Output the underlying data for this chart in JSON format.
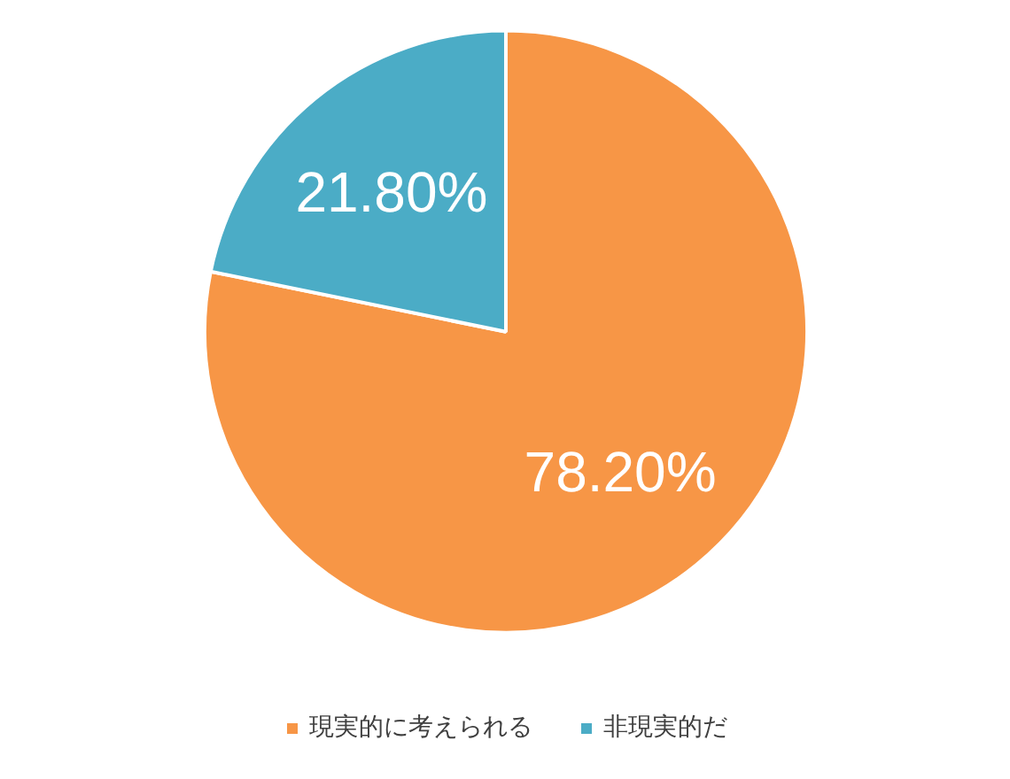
{
  "chart_data": {
    "type": "pie",
    "categories": [
      "現実的に考えられる",
      "非現実的だ"
    ],
    "values": [
      78.2,
      21.8
    ],
    "colors": [
      "#f79646",
      "#4bacc6"
    ],
    "value_labels": [
      "78.20%",
      "21.80%"
    ],
    "legend": "bottom"
  }
}
